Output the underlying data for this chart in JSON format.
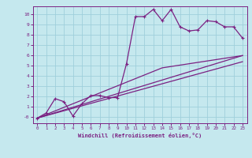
{
  "xlabel": "Windchill (Refroidissement éolien,°C)",
  "bg_color": "#c5e8ee",
  "grid_color": "#9fcfdb",
  "line_color": "#7b2182",
  "spine_color": "#7b2182",
  "xlim": [
    -0.5,
    23.5
  ],
  "ylim": [
    -0.6,
    10.8
  ],
  "xticks": [
    0,
    1,
    2,
    3,
    4,
    5,
    6,
    7,
    8,
    9,
    10,
    11,
    12,
    13,
    14,
    15,
    16,
    17,
    18,
    19,
    20,
    21,
    22,
    23
  ],
  "yticks": [
    0,
    1,
    2,
    3,
    4,
    5,
    6,
    7,
    8,
    9,
    10
  ],
  "ytick_labels": [
    "-0",
    "1",
    "2",
    "3",
    "4",
    "5",
    "6",
    "7",
    "8",
    "9",
    "10"
  ],
  "line1_x": [
    0,
    1,
    2,
    3,
    4,
    5,
    6,
    7,
    8,
    9,
    10,
    11,
    12,
    13,
    14,
    15,
    16,
    17,
    18,
    19,
    20,
    21,
    22,
    23
  ],
  "line1_y": [
    -0.1,
    0.4,
    1.8,
    1.5,
    0.1,
    1.3,
    2.1,
    2.1,
    1.9,
    1.9,
    5.2,
    9.8,
    9.8,
    10.5,
    9.4,
    10.5,
    8.8,
    8.4,
    8.5,
    9.4,
    9.3,
    8.8,
    8.8,
    7.7
  ],
  "line2_x": [
    0,
    23
  ],
  "line2_y": [
    -0.1,
    6.0
  ],
  "line3_x": [
    0,
    23
  ],
  "line3_y": [
    -0.1,
    5.4
  ],
  "line4_x": [
    0,
    14,
    23
  ],
  "line4_y": [
    -0.1,
    4.8,
    6.0
  ]
}
